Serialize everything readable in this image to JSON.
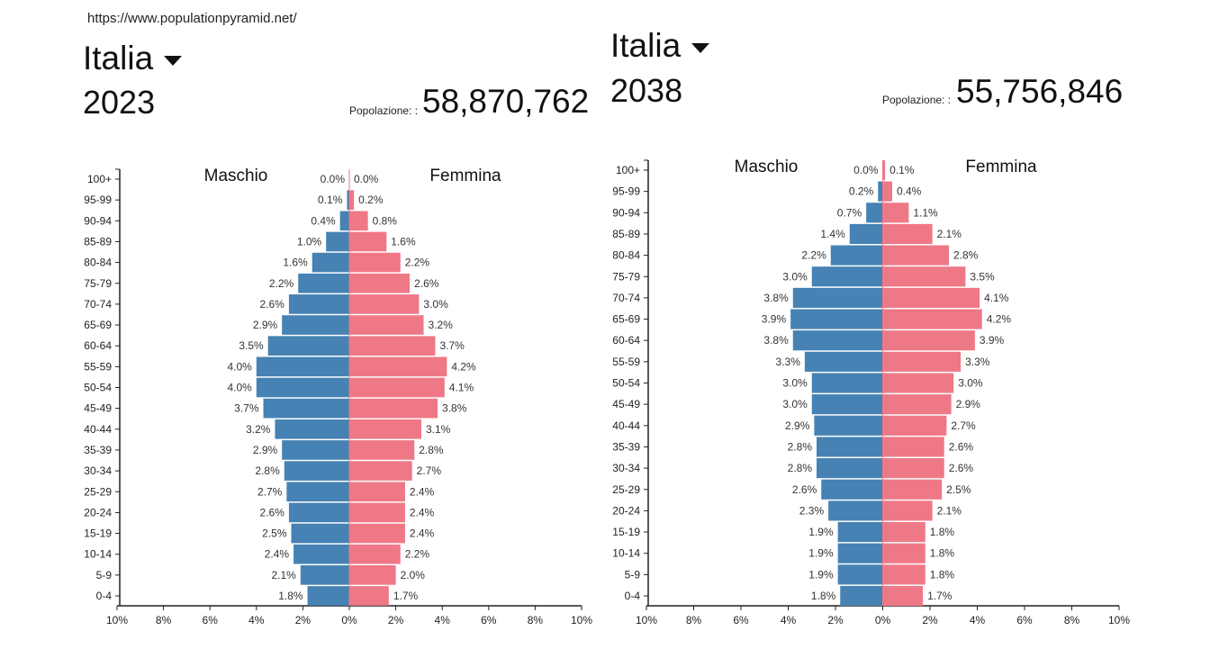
{
  "url": "https://www.populationpyramid.net/",
  "colors": {
    "male": "#4682b4",
    "female": "#ef7887",
    "axis": "#222222"
  },
  "chart_data": [
    {
      "type": "bar",
      "country": "Italia",
      "year": "2023",
      "population_label": "Popolazione: :",
      "population": "58,870,762",
      "male_label": "Maschio",
      "female_label": "Femmina",
      "xlim": [
        -10,
        10
      ],
      "xticks": [
        "10%",
        "8%",
        "6%",
        "4%",
        "2%",
        "0%",
        "2%",
        "4%",
        "6%",
        "8%",
        "10%"
      ],
      "categories": [
        "100+",
        "95-99",
        "90-94",
        "85-89",
        "80-84",
        "75-79",
        "70-74",
        "65-69",
        "60-64",
        "55-59",
        "50-54",
        "45-49",
        "40-44",
        "35-39",
        "30-34",
        "25-29",
        "20-24",
        "15-19",
        "10-14",
        "5-9",
        "0-4"
      ],
      "series": [
        {
          "name": "Maschio",
          "values": [
            0.0,
            0.1,
            0.4,
            1.0,
            1.6,
            2.2,
            2.6,
            2.9,
            3.5,
            4.0,
            4.0,
            3.7,
            3.2,
            2.9,
            2.8,
            2.7,
            2.6,
            2.5,
            2.4,
            2.1,
            1.8
          ]
        },
        {
          "name": "Femmina",
          "values": [
            0.0,
            0.2,
            0.8,
            1.6,
            2.2,
            2.6,
            3.0,
            3.2,
            3.7,
            4.2,
            4.1,
            3.8,
            3.1,
            2.8,
            2.7,
            2.4,
            2.4,
            2.4,
            2.2,
            2.0,
            1.7
          ]
        }
      ]
    },
    {
      "type": "bar",
      "country": "Italia",
      "year": "2038",
      "population_label": "Popolazione: :",
      "population": "55,756,846",
      "male_label": "Maschio",
      "female_label": "Femmina",
      "xlim": [
        -10,
        10
      ],
      "xticks": [
        "10%",
        "8%",
        "6%",
        "4%",
        "2%",
        "0%",
        "2%",
        "4%",
        "6%",
        "8%",
        "10%"
      ],
      "categories": [
        "100+",
        "95-99",
        "90-94",
        "85-89",
        "80-84",
        "75-79",
        "70-74",
        "65-69",
        "60-64",
        "55-59",
        "50-54",
        "45-49",
        "40-44",
        "35-39",
        "30-34",
        "25-29",
        "20-24",
        "15-19",
        "10-14",
        "5-9",
        "0-4"
      ],
      "series": [
        {
          "name": "Maschio",
          "values": [
            0.0,
            0.2,
            0.7,
            1.4,
            2.2,
            3.0,
            3.8,
            3.9,
            3.8,
            3.3,
            3.0,
            3.0,
            2.9,
            2.8,
            2.8,
            2.6,
            2.3,
            1.9,
            1.9,
            1.9,
            1.8
          ]
        },
        {
          "name": "Femmina",
          "values": [
            0.1,
            0.4,
            1.1,
            2.1,
            2.8,
            3.5,
            4.1,
            4.2,
            3.9,
            3.3,
            3.0,
            2.9,
            2.7,
            2.6,
            2.6,
            2.5,
            2.1,
            1.8,
            1.8,
            1.8,
            1.7
          ]
        }
      ]
    }
  ]
}
